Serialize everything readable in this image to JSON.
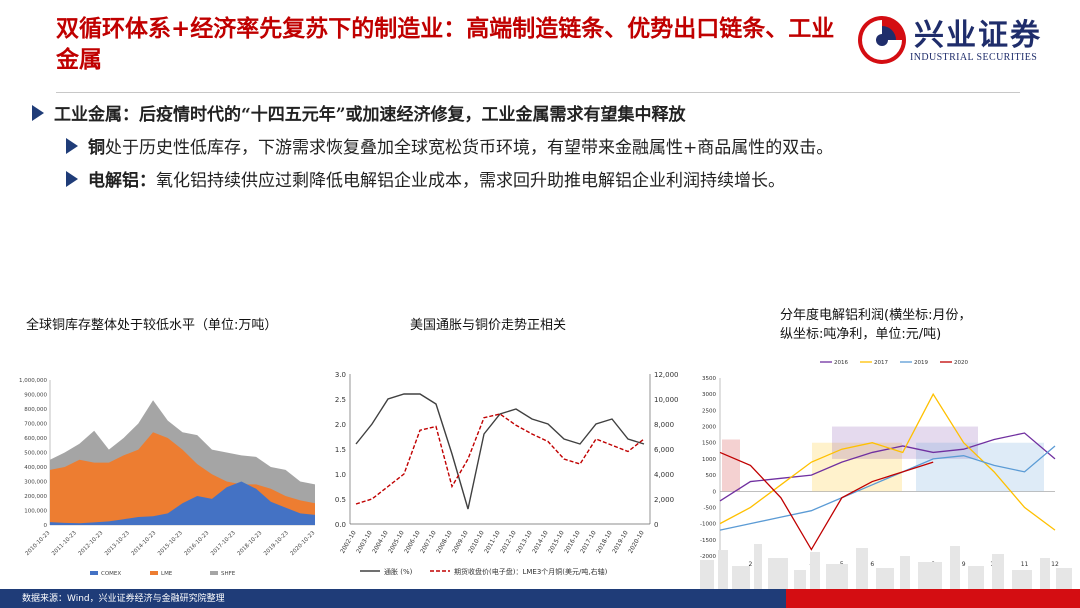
{
  "header": {
    "title": "双循环体系+经济率先复苏下的制造业：高端制造链条、优势出口链条、工业金属",
    "logo_cn": "兴业证券",
    "logo_en": "INDUSTRIAL SECURITIES"
  },
  "bullets": [
    {
      "label": "工业金属：",
      "text": "后疫情时代的“十四五元年”或加速经济修复，工业金属需求有望集中释放"
    },
    {
      "label": "铜",
      "text": "处于历史性低库存，下游需求恢复叠加全球宽松货币环境，有望带来金融属性+商品属性的双击。"
    },
    {
      "label": "电解铝：",
      "text": "氧化铝持续供应过剩降低电解铝企业成本，需求回升助推电解铝企业利润持续增长。"
    }
  ],
  "chart_titles": {
    "c1": "全球铜库存整体处于较低水平（单位:万吨）",
    "c2": "美国通胀与铜价走势正相关",
    "c3_line1": "分年度电解铝利润(横坐标:月份，",
    "c3_line2": "纵坐标:吨净利，单位:元/吨)"
  },
  "chart_data": [
    {
      "type": "area",
      "y_ticks": [
        "1,000,000",
        "900,000",
        "800,000",
        "700,000",
        "600,000",
        "500,000",
        "400,000",
        "300,000",
        "200,000",
        "100,000",
        "0"
      ],
      "x_ticks": [
        "2010-10-23",
        "2011-10-23",
        "2012-10-23",
        "2013-10-23",
        "2014-10-23",
        "2015-10-23",
        "2016-10-23",
        "2017-10-23",
        "2018-10-23",
        "2019-10-23",
        "2020-10-23"
      ],
      "ylim": [
        0,
        1000000
      ],
      "series": [
        {
          "name": "COMEX",
          "color": "#4472c4",
          "values": [
            20000,
            15000,
            12000,
            18000,
            25000,
            40000,
            55000,
            60000,
            80000,
            150000,
            200000,
            180000,
            260000,
            300000,
            250000,
            160000,
            120000,
            80000,
            70000
          ]
        },
        {
          "name": "LME",
          "color": "#ed7d31",
          "values": [
            380000,
            400000,
            450000,
            430000,
            430000,
            480000,
            520000,
            640000,
            600000,
            520000,
            420000,
            350000,
            300000,
            280000,
            280000,
            250000,
            200000,
            170000,
            150000
          ]
        },
        {
          "name": "SHFE",
          "color": "#a5a5a5",
          "values": [
            450000,
            500000,
            560000,
            650000,
            520000,
            600000,
            700000,
            860000,
            720000,
            640000,
            620000,
            520000,
            500000,
            480000,
            470000,
            400000,
            380000,
            300000,
            280000
          ]
        }
      ]
    },
    {
      "type": "line",
      "x_ticks": [
        "2002-10",
        "2003-10",
        "2004-10",
        "2005-10",
        "2006-10",
        "2007-10",
        "2008-10",
        "2009-10",
        "2010-10",
        "2011-10",
        "2012-10",
        "2013-10",
        "2014-10",
        "2015-10",
        "2016-10",
        "2017-10",
        "2018-10",
        "2019-10",
        "2020-10"
      ],
      "y_left_ticks": [
        "3.0",
        "2.5",
        "2.0",
        "1.5",
        "1.0",
        "0.5",
        "0.0"
      ],
      "y_right_ticks": [
        "12,000",
        "10,000",
        "8,000",
        "6,000",
        "4,000",
        "2,000",
        "0"
      ],
      "ylim_left": [
        0,
        3.0
      ],
      "ylim_right": [
        0,
        12000
      ],
      "series": [
        {
          "name": "通胀 (%)",
          "axis": "left",
          "color": "#404040",
          "values": [
            1.6,
            2.0,
            2.5,
            2.6,
            2.6,
            2.4,
            1.4,
            0.3,
            1.8,
            2.2,
            2.3,
            2.1,
            2.0,
            1.7,
            1.6,
            2.0,
            2.1,
            1.7,
            1.6
          ]
        },
        {
          "name": "期货收盘价(电子盘)：LME3个月铜(美元/吨,右轴)",
          "axis": "right",
          "color": "#c00000",
          "values": [
            1600,
            2000,
            3000,
            4000,
            7500,
            7800,
            3000,
            5200,
            8500,
            8800,
            7900,
            7200,
            6600,
            5200,
            4800,
            6800,
            6300,
            5800,
            6800
          ]
        }
      ]
    },
    {
      "type": "line",
      "x_ticks": [
        "1",
        "2",
        "3",
        "4",
        "5",
        "6",
        "7",
        "8",
        "9",
        "10",
        "11",
        "12"
      ],
      "y_ticks": [
        "3500",
        "3000",
        "2500",
        "2000",
        "1500",
        "1000",
        "500",
        "0",
        "-500",
        "-1000",
        "-1500",
        "-2000"
      ],
      "ylim": [
        -2000,
        3500
      ],
      "series": [
        {
          "name": "2016",
          "color": "#7030a0",
          "values": [
            -300,
            300,
            400,
            500,
            900,
            1200,
            1400,
            1200,
            1300,
            1600,
            1800,
            1000
          ]
        },
        {
          "name": "2017",
          "color": "#ffc000",
          "values": [
            -1000,
            -500,
            200,
            900,
            1300,
            1500,
            1200,
            3000,
            1500,
            600,
            -500,
            -1200
          ]
        },
        {
          "name": "2019",
          "color": "#5b9bd5",
          "values": [
            -1200,
            -1000,
            -800,
            -600,
            -200,
            200,
            600,
            1000,
            1100,
            800,
            600,
            1400
          ]
        },
        {
          "name": "2020",
          "color": "#c00000",
          "values": [
            1200,
            800,
            -200,
            -1800,
            -200,
            300,
            600,
            900,
            null,
            null,
            null,
            null
          ]
        }
      ]
    }
  ],
  "footer": {
    "source": "数据来源：Wind，兴业证券经济与金融研究院整理"
  }
}
